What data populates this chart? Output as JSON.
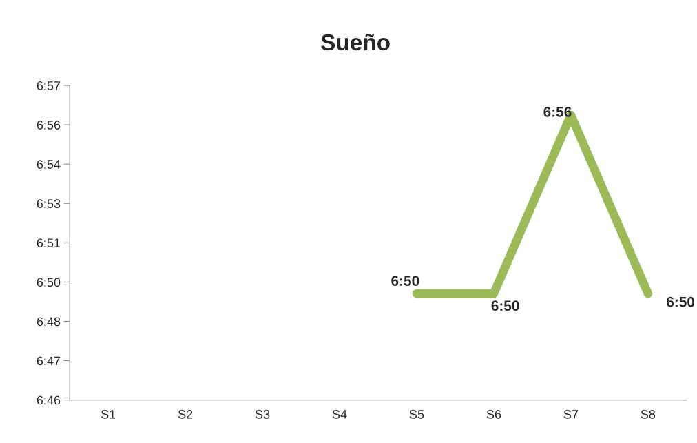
{
  "chart_data": {
    "type": "line",
    "title": "Sueño",
    "categories": [
      "S1",
      "S2",
      "S3",
      "S4",
      "S5",
      "S6",
      "S7",
      "S8"
    ],
    "series": [
      {
        "color": "#9bbb59",
        "values": [
          null,
          null,
          null,
          null,
          6.825,
          6.825,
          6.934,
          6.825
        ],
        "value_labels": [
          null,
          null,
          null,
          null,
          "6:50",
          "6:50",
          "6:56",
          "6:50"
        ]
      }
    ],
    "ylim": [
      6.76,
      6.952
    ],
    "yticks": [
      {
        "value": 6.76,
        "label": "6:46"
      },
      {
        "value": 6.784,
        "label": "6:47"
      },
      {
        "value": 6.808,
        "label": "6:48"
      },
      {
        "value": 6.832,
        "label": "6:50"
      },
      {
        "value": 6.856,
        "label": "6:51"
      },
      {
        "value": 6.88,
        "label": "6:53"
      },
      {
        "value": 6.904,
        "label": "6:54"
      },
      {
        "value": 6.928,
        "label": "6:56"
      },
      {
        "value": 6.952,
        "label": "6:57"
      }
    ],
    "line_style": "solid"
  }
}
